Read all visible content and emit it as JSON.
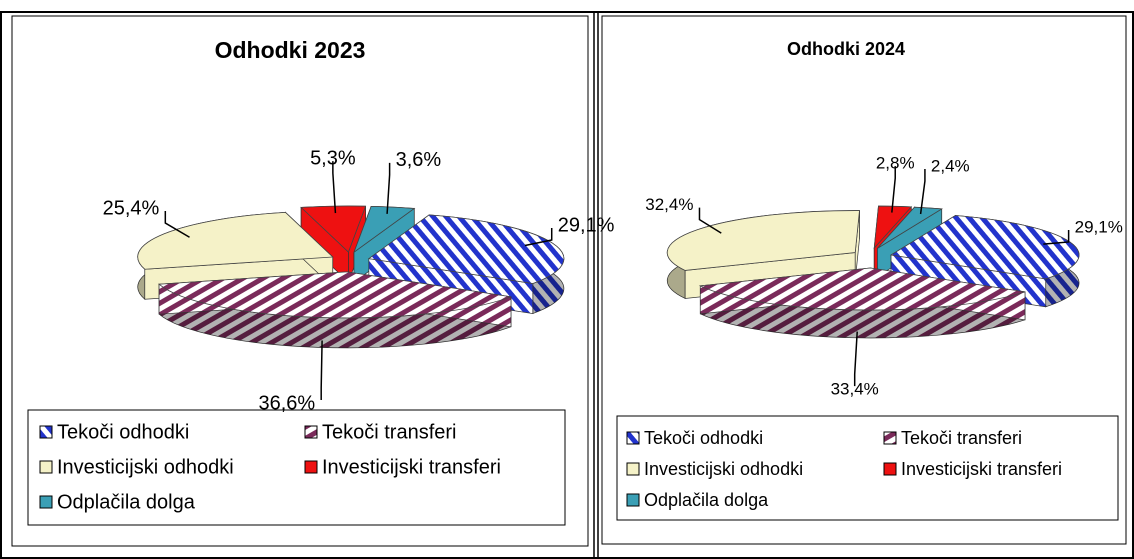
{
  "chart_data": [
    {
      "type": "pie",
      "title": "Odhodki 2023",
      "categories": [
        "Tekoči odhodki",
        "Tekoči transferi",
        "Investicijski odhodki",
        "Investicijski transferi",
        "Odplačila dolga"
      ],
      "values": [
        29.1,
        36.6,
        25.4,
        5.3,
        3.6
      ],
      "value_labels": [
        "29,1%",
        "36,6%",
        "25,4%",
        "5,3%",
        "3,6%"
      ],
      "colors": [
        "#2233cc",
        "#7a2a5a",
        "#f5f2c8",
        "#ee1111",
        "#3a9fb5"
      ],
      "legend": "bottom"
    },
    {
      "type": "pie",
      "title": "Odhodki 2024",
      "categories": [
        "Tekoči odhodki",
        "Tekoči transferi",
        "Investicijski odhodki",
        "Investicijski transferi",
        "Odplačila dolga"
      ],
      "values": [
        29.1,
        33.4,
        32.4,
        2.8,
        2.4
      ],
      "value_labels": [
        "29,1%",
        "33,4%",
        "32,4%",
        "2,8%",
        "2,4%"
      ],
      "colors": [
        "#2233cc",
        "#7a2a5a",
        "#f5f2c8",
        "#ee1111",
        "#3a9fb5"
      ],
      "legend": "bottom"
    }
  ]
}
